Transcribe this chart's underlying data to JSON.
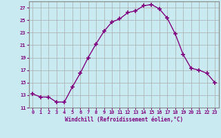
{
  "x": [
    0,
    1,
    2,
    3,
    4,
    5,
    6,
    7,
    8,
    9,
    10,
    11,
    12,
    13,
    14,
    15,
    16,
    17,
    18,
    19,
    20,
    21,
    22,
    23
  ],
  "y": [
    13.2,
    12.7,
    12.7,
    11.9,
    11.9,
    14.3,
    16.5,
    19.0,
    21.2,
    23.2,
    24.7,
    25.2,
    26.2,
    26.5,
    27.3,
    27.5,
    26.8,
    25.3,
    22.8,
    19.5,
    17.3,
    17.0,
    16.5,
    15.0
  ],
  "line_color": "#800080",
  "marker": "+",
  "marker_size": 4,
  "bg_color": "#c8eaf0",
  "grid_color": "#aaaaaa",
  "xlabel": "Windchill (Refroidissement éolien,°C)",
  "xlabel_color": "#800080",
  "tick_color": "#800080",
  "ylim": [
    11,
    28
  ],
  "yticks": [
    11,
    13,
    15,
    17,
    19,
    21,
    23,
    25,
    27
  ],
  "xlim": [
    -0.5,
    23.5
  ],
  "xticks": [
    0,
    1,
    2,
    3,
    4,
    5,
    6,
    7,
    8,
    9,
    10,
    11,
    12,
    13,
    14,
    15,
    16,
    17,
    18,
    19,
    20,
    21,
    22,
    23
  ],
  "spine_color": "#888888"
}
